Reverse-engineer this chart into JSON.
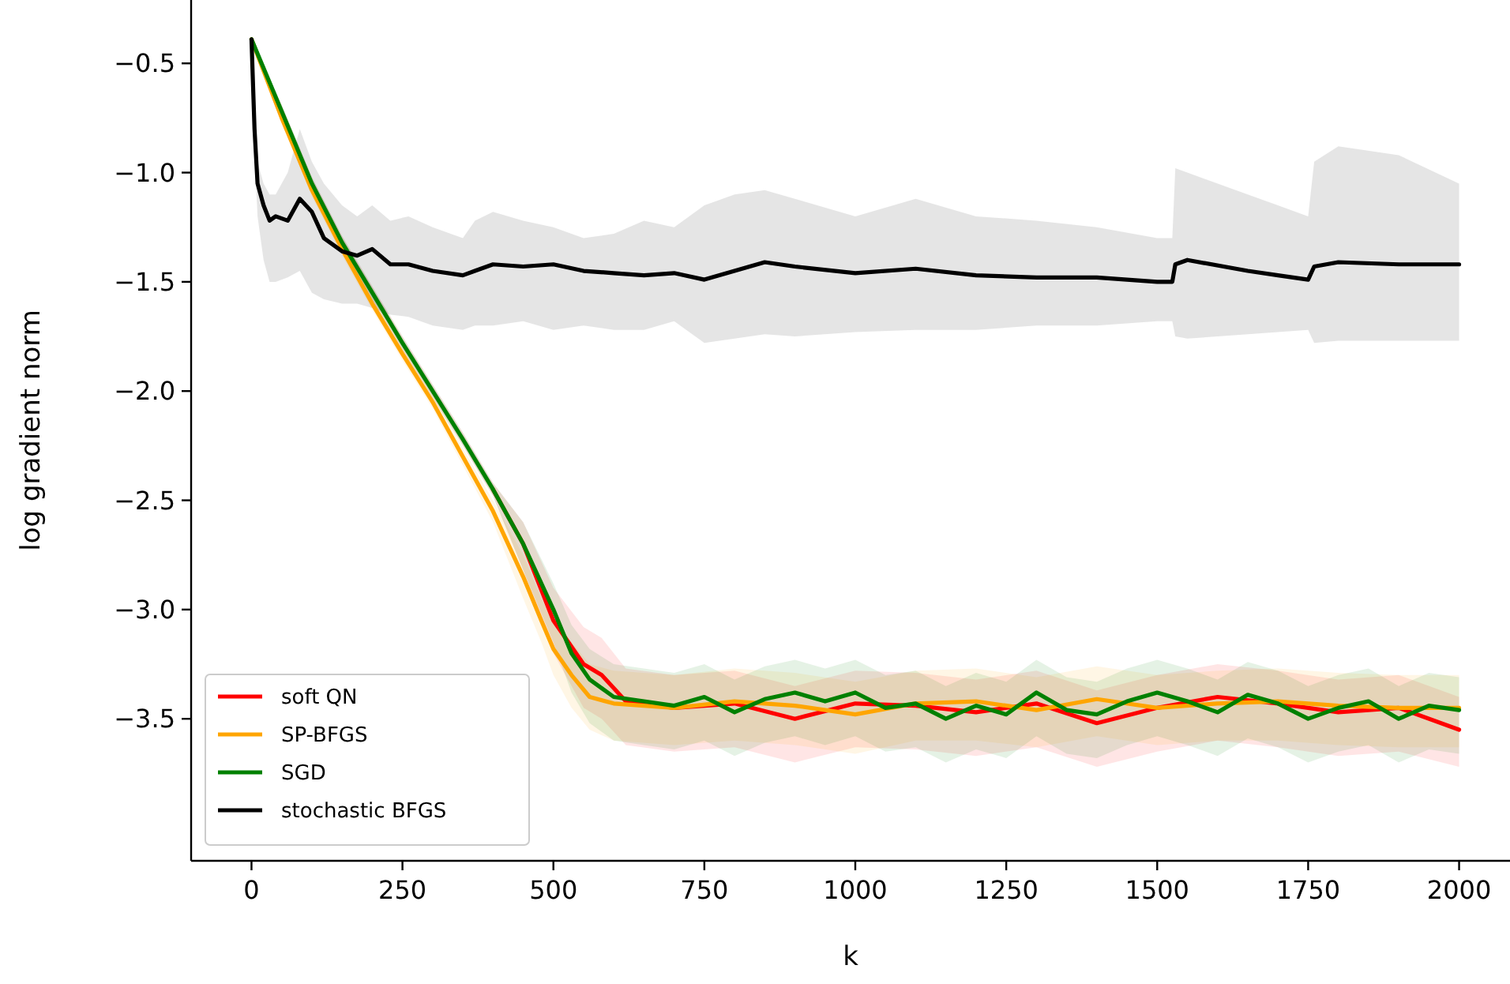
{
  "chart_data": {
    "type": "line",
    "xlabel": "k",
    "ylabel": "log gradient norm",
    "xlim": [
      -100,
      2100
    ],
    "ylim": [
      -4.15,
      -0.21
    ],
    "xticks": [
      0,
      250,
      500,
      750,
      1000,
      1250,
      1500,
      1750,
      2000
    ],
    "yticks": [
      {
        "value": -3.5,
        "label": "−3.5"
      },
      {
        "value": -3.0,
        "label": "−3.0"
      },
      {
        "value": -2.5,
        "label": "−2.5"
      },
      {
        "value": -2.0,
        "label": "−2.0"
      },
      {
        "value": -1.5,
        "label": "−1.5"
      },
      {
        "value": -1.0,
        "label": "−1.0"
      },
      {
        "value": -0.5,
        "label": "−0.5"
      }
    ],
    "grid": false,
    "legend": "bottom left",
    "marker": "none",
    "line_style": "solid",
    "series": [
      {
        "name": "soft QN",
        "color": "#ff0000",
        "x": [
          0,
          50,
          100,
          150,
          200,
          250,
          300,
          350,
          400,
          450,
          500,
          550,
          580,
          620,
          700,
          800,
          900,
          1000,
          1100,
          1200,
          1300,
          1400,
          1500,
          1600,
          1700,
          1800,
          1900,
          2000
        ],
        "values": [
          null,
          null,
          null,
          null,
          null,
          null,
          null,
          null,
          -2.45,
          -2.7,
          -3.05,
          -3.25,
          -3.3,
          -3.42,
          -3.45,
          -3.43,
          -3.5,
          -3.43,
          -3.44,
          -3.47,
          -3.43,
          -3.52,
          -3.45,
          -3.4,
          -3.43,
          -3.47,
          -3.45,
          -3.55
        ],
        "upper": [
          -0.39,
          -0.69,
          -1.02,
          -1.29,
          -1.52,
          -1.75,
          -1.97,
          -2.19,
          -2.42,
          -2.6,
          -2.9,
          -3.08,
          -3.13,
          -3.27,
          -3.3,
          -3.28,
          -3.35,
          -3.28,
          -3.29,
          -3.32,
          -3.28,
          -3.37,
          -3.3,
          -3.25,
          -3.28,
          -3.32,
          -3.3,
          -3.4
        ],
        "lower": [
          -0.39,
          -0.75,
          -1.08,
          -1.35,
          -1.58,
          -1.81,
          -2.03,
          -2.25,
          -2.48,
          -2.82,
          -3.2,
          -3.45,
          -3.5,
          -3.62,
          -3.65,
          -3.63,
          -3.7,
          -3.63,
          -3.64,
          -3.67,
          -3.63,
          -3.72,
          -3.65,
          -3.6,
          -3.63,
          -3.67,
          -3.65,
          -3.72
        ]
      },
      {
        "name": "SP-BFGS",
        "color": "#ffa500",
        "x": [
          0,
          50,
          100,
          150,
          200,
          250,
          300,
          350,
          400,
          450,
          480,
          500,
          530,
          560,
          600,
          700,
          800,
          900,
          1000,
          1100,
          1200,
          1300,
          1400,
          1500,
          1600,
          1700,
          1800,
          1900,
          2000
        ],
        "values": [
          -0.39,
          -0.75,
          -1.08,
          -1.35,
          -1.6,
          -1.83,
          -2.05,
          -2.3,
          -2.55,
          -2.85,
          -3.05,
          -3.18,
          -3.3,
          -3.4,
          -3.43,
          -3.45,
          -3.42,
          -3.44,
          -3.48,
          -3.43,
          -3.42,
          -3.46,
          -3.41,
          -3.45,
          -3.43,
          -3.42,
          -3.44,
          -3.45,
          -3.45
        ],
        "upper": [
          -0.39,
          -0.73,
          -1.05,
          -1.32,
          -1.57,
          -1.8,
          -2.02,
          -2.26,
          -2.5,
          -2.75,
          -2.95,
          -3.05,
          -3.15,
          -3.25,
          -3.28,
          -3.3,
          -3.27,
          -3.29,
          -3.33,
          -3.28,
          -3.27,
          -3.31,
          -3.26,
          -3.3,
          -3.28,
          -3.27,
          -3.29,
          -3.3,
          -3.3
        ],
        "lower": [
          -0.39,
          -0.77,
          -1.11,
          -1.38,
          -1.63,
          -1.86,
          -2.08,
          -2.34,
          -2.6,
          -2.95,
          -3.15,
          -3.3,
          -3.45,
          -3.55,
          -3.6,
          -3.62,
          -3.6,
          -3.62,
          -3.66,
          -3.6,
          -3.6,
          -3.63,
          -3.58,
          -3.62,
          -3.6,
          -3.6,
          -3.62,
          -3.63,
          -3.63
        ]
      },
      {
        "name": "SGD",
        "color": "#008000",
        "x": [
          0,
          50,
          100,
          150,
          200,
          250,
          300,
          350,
          400,
          450,
          500,
          530,
          560,
          600,
          650,
          700,
          750,
          800,
          850,
          900,
          950,
          1000,
          1050,
          1100,
          1150,
          1200,
          1250,
          1300,
          1350,
          1400,
          1450,
          1500,
          1550,
          1600,
          1650,
          1700,
          1750,
          1800,
          1850,
          1900,
          1950,
          2000
        ],
        "values": [
          -0.39,
          -0.72,
          -1.05,
          -1.32,
          -1.55,
          -1.78,
          -2.0,
          -2.22,
          -2.45,
          -2.7,
          -3.0,
          -3.2,
          -3.32,
          -3.4,
          -3.42,
          -3.44,
          -3.4,
          -3.47,
          -3.41,
          -3.38,
          -3.42,
          -3.38,
          -3.45,
          -3.43,
          -3.5,
          -3.44,
          -3.48,
          -3.38,
          -3.46,
          -3.48,
          -3.42,
          -3.38,
          -3.42,
          -3.47,
          -3.39,
          -3.43,
          -3.5,
          -3.45,
          -3.42,
          -3.5,
          -3.44,
          -3.46
        ],
        "upper": [
          -0.39,
          -0.69,
          -1.02,
          -1.29,
          -1.52,
          -1.75,
          -1.97,
          -2.19,
          -2.42,
          -2.6,
          -2.88,
          -3.07,
          -3.18,
          -3.25,
          -3.27,
          -3.29,
          -3.25,
          -3.32,
          -3.26,
          -3.23,
          -3.27,
          -3.23,
          -3.3,
          -3.28,
          -3.35,
          -3.29,
          -3.33,
          -3.23,
          -3.31,
          -3.33,
          -3.27,
          -3.23,
          -3.27,
          -3.32,
          -3.24,
          -3.28,
          -3.35,
          -3.3,
          -3.27,
          -3.35,
          -3.29,
          -3.31
        ],
        "lower": [
          -0.39,
          -0.75,
          -1.08,
          -1.35,
          -1.58,
          -1.81,
          -2.03,
          -2.25,
          -2.48,
          -2.82,
          -3.15,
          -3.38,
          -3.52,
          -3.6,
          -3.62,
          -3.64,
          -3.6,
          -3.67,
          -3.61,
          -3.58,
          -3.62,
          -3.58,
          -3.65,
          -3.63,
          -3.7,
          -3.64,
          -3.68,
          -3.58,
          -3.66,
          -3.68,
          -3.62,
          -3.58,
          -3.62,
          -3.67,
          -3.59,
          -3.63,
          -3.7,
          -3.65,
          -3.62,
          -3.7,
          -3.64,
          -3.66
        ]
      },
      {
        "name": "stochastic BFGS",
        "color": "#000000",
        "x": [
          0,
          5,
          10,
          20,
          30,
          40,
          60,
          80,
          100,
          120,
          150,
          175,
          200,
          230,
          260,
          300,
          350,
          370,
          400,
          450,
          500,
          550,
          600,
          650,
          700,
          750,
          800,
          850,
          900,
          1000,
          1100,
          1200,
          1300,
          1400,
          1500,
          1525,
          1530,
          1550,
          1650,
          1700,
          1750,
          1760,
          1800,
          1900,
          2000
        ],
        "values": [
          -0.39,
          -0.8,
          -1.05,
          -1.15,
          -1.22,
          -1.2,
          -1.22,
          -1.12,
          -1.18,
          -1.3,
          -1.36,
          -1.38,
          -1.35,
          -1.42,
          -1.42,
          -1.45,
          -1.47,
          -1.45,
          -1.42,
          -1.43,
          -1.42,
          -1.45,
          -1.46,
          -1.47,
          -1.46,
          -1.49,
          -1.45,
          -1.41,
          -1.43,
          -1.46,
          -1.44,
          -1.47,
          -1.48,
          -1.48,
          -1.5,
          -1.5,
          -1.42,
          -1.4,
          -1.45,
          -1.47,
          -1.49,
          -1.43,
          -1.41,
          -1.42,
          -1.42
        ],
        "upper": [
          -0.39,
          -0.7,
          -0.95,
          -1.05,
          -1.1,
          -1.1,
          -1.0,
          -0.8,
          -0.95,
          -1.05,
          -1.15,
          -1.2,
          -1.15,
          -1.22,
          -1.2,
          -1.25,
          -1.3,
          -1.22,
          -1.18,
          -1.22,
          -1.25,
          -1.3,
          -1.28,
          -1.22,
          -1.25,
          -1.15,
          -1.1,
          -1.08,
          -1.12,
          -1.2,
          -1.12,
          -1.2,
          -1.22,
          -1.25,
          -1.3,
          -1.3,
          -0.98,
          -1.0,
          -1.1,
          -1.15,
          -1.2,
          -0.95,
          -0.88,
          -0.92,
          -1.05
        ],
        "lower": [
          -0.39,
          -0.9,
          -1.2,
          -1.4,
          -1.5,
          -1.5,
          -1.48,
          -1.45,
          -1.55,
          -1.58,
          -1.6,
          -1.6,
          -1.62,
          -1.65,
          -1.66,
          -1.7,
          -1.72,
          -1.7,
          -1.7,
          -1.68,
          -1.72,
          -1.7,
          -1.72,
          -1.72,
          -1.68,
          -1.78,
          -1.76,
          -1.74,
          -1.75,
          -1.73,
          -1.72,
          -1.72,
          -1.7,
          -1.7,
          -1.68,
          -1.68,
          -1.75,
          -1.76,
          -1.74,
          -1.73,
          -1.72,
          -1.78,
          -1.77,
          -1.77,
          -1.77
        ]
      }
    ]
  }
}
